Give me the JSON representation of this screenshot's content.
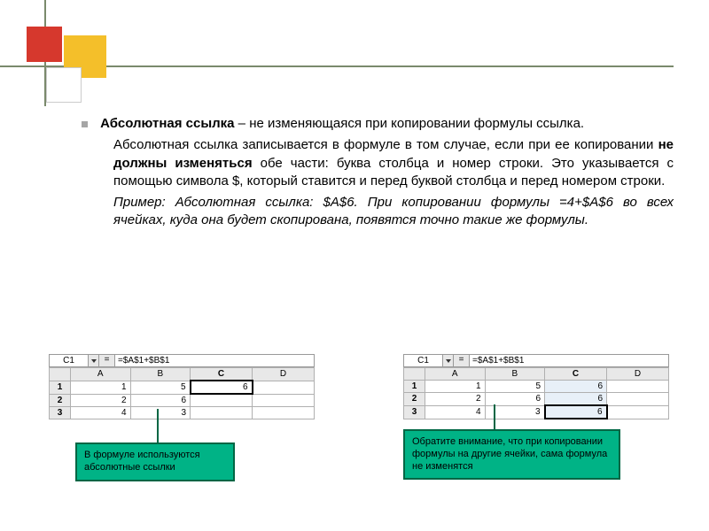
{
  "title_term": "Абсолютная ссылка",
  "title_rest": " – не изменяющаяся при копировании формулы ссылка.",
  "p2a": "Абсолютная ссылка записывается в формуле в том случае, если при ее копировании ",
  "p2b": "не должны изменяться",
  "p2c": " обе части: буква столбца и номер строки. Это указывается с помощью символа $, который ставится и перед буквой столбца и перед номером строки.",
  "p3a": "Пример: Абсолютная ссылка: $A$6. При копировании формулы =4+$A$6 во всех ячейках, куда она будет скопирована, появятся точно такие же формулы.",
  "sheet_left": {
    "cellref": "C1",
    "formula": "=$A$1+$B$1",
    "cols": [
      "A",
      "B",
      "C",
      "D"
    ],
    "bold_col": "C",
    "rows": [
      {
        "n": "1",
        "cells": [
          "1",
          "5",
          "6",
          ""
        ],
        "cursor": 2
      },
      {
        "n": "2",
        "cells": [
          "2",
          "6",
          "",
          ""
        ]
      },
      {
        "n": "3",
        "cells": [
          "4",
          "3",
          "",
          ""
        ]
      }
    ]
  },
  "sheet_right": {
    "cellref": "C1",
    "formula": "=$A$1+$B$1",
    "cols": [
      "A",
      "B",
      "C",
      "D"
    ],
    "bold_col": "C",
    "rows": [
      {
        "n": "1",
        "cells": [
          "1",
          "5",
          "6",
          ""
        ],
        "sel": 2
      },
      {
        "n": "2",
        "cells": [
          "2",
          "6",
          "6",
          ""
        ],
        "sel": 2
      },
      {
        "n": "3",
        "cells": [
          "4",
          "3",
          "6",
          ""
        ],
        "sel": 2,
        "cursor": 2
      }
    ]
  },
  "callout_left": "В формуле используются абсолютные ссылки",
  "callout_right": "Обратите внимание, что при копировании формулы на другие ячейки, сама формула не изменятся",
  "colors": {
    "accent": "#00b386",
    "accent_border": "#006644"
  }
}
